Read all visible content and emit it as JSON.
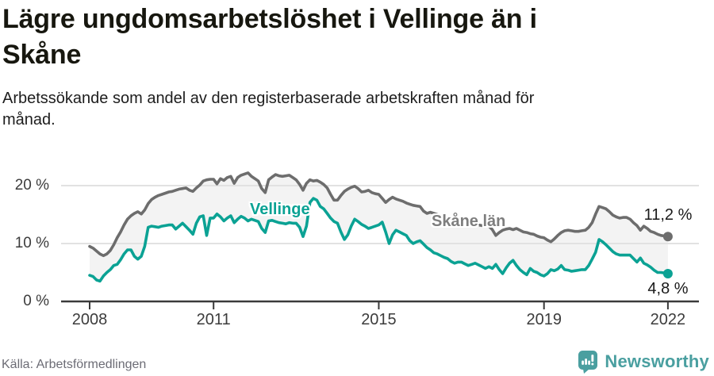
{
  "header": {
    "title_line1": "Lägre ungdomsarbetslöshet i Vellinge än i",
    "title_line2": "Skåne",
    "subtitle_line1": "Arbetssökande som andel av den registerbaserade arbetskraften månad för",
    "subtitle_line2": "månad."
  },
  "chart_data": {
    "type": "line",
    "title": "Lägre ungdomsarbetslöshet i Vellinge än i Skåne",
    "subtitle": "Arbetssökande som andel av den registerbaserade arbetskraften månad för månad.",
    "unit": "%",
    "x_start": "2008-01",
    "x_end": "2022-01",
    "x_interval": "monthly",
    "ylim": [
      0,
      23
    ],
    "grid": "horizontal",
    "legend_position": "inline-labels",
    "yticks": [
      {
        "value": 20,
        "label": "20 %"
      },
      {
        "value": 10,
        "label": "10 %"
      },
      {
        "value": 0,
        "label": "0 %"
      }
    ],
    "xticks": [
      {
        "value": 2008,
        "label": "2008"
      },
      {
        "value": 2011,
        "label": "2011"
      },
      {
        "value": 2015,
        "label": "2015"
      },
      {
        "value": 2019,
        "label": "2019"
      },
      {
        "value": 2022,
        "label": "2022"
      }
    ],
    "band_fill": "#f3f3f3",
    "series": [
      {
        "name": "Skåne län",
        "color": "#6d6d6d",
        "last_value_label": "11,2 %",
        "values": [
          9.5,
          9.2,
          8.7,
          8.2,
          7.9,
          8.2,
          8.8,
          9.8,
          11.0,
          12.0,
          13.2,
          14.2,
          14.8,
          15.2,
          15.5,
          15.1,
          15.8,
          16.9,
          17.6,
          18.0,
          18.3,
          18.5,
          18.7,
          18.9,
          19.0,
          19.2,
          19.4,
          19.5,
          19.6,
          19.2,
          19.0,
          19.6,
          20.1,
          20.8,
          21.0,
          21.1,
          21.1,
          20.3,
          21.2,
          20.9,
          21.4,
          21.6,
          20.4,
          21.4,
          21.8,
          22.0,
          22.2,
          21.6,
          21.2,
          20.8,
          19.5,
          18.8,
          21.0,
          21.5,
          21.9,
          21.7,
          21.6,
          21.7,
          21.8,
          21.4,
          21.0,
          20.2,
          19.2,
          20.4,
          21.0,
          20.8,
          20.9,
          20.6,
          20.2,
          19.6,
          18.5,
          17.5,
          17.5,
          18.3,
          19.0,
          19.4,
          19.7,
          19.9,
          19.5,
          18.9,
          19.0,
          19.2,
          18.8,
          18.6,
          18.5,
          17.8,
          17.1,
          17.6,
          18.0,
          17.7,
          17.5,
          17.3,
          17.0,
          16.8,
          16.6,
          16.5,
          16.4,
          15.6,
          15.2,
          15.4,
          15.2,
          15.0,
          14.8,
          14.7,
          14.5,
          14.3,
          14.1,
          14.0,
          13.9,
          13.7,
          13.5,
          13.6,
          13.4,
          13.2,
          13.1,
          13.0,
          13.0,
          12.4,
          11.4,
          11.9,
          12.3,
          12.5,
          12.6,
          12.4,
          12.6,
          12.3,
          12.0,
          11.9,
          11.7,
          11.6,
          11.3,
          11.1,
          11.0,
          10.6,
          10.3,
          10.8,
          11.4,
          11.9,
          12.2,
          12.3,
          12.2,
          12.1,
          12.1,
          12.2,
          12.3,
          12.8,
          13.6,
          15.1,
          16.4,
          16.2,
          16.0,
          15.5,
          14.9,
          14.6,
          14.4,
          14.5,
          14.5,
          14.2,
          13.6,
          13.1,
          12.3,
          13.0,
          12.6,
          12.1,
          11.9,
          11.6,
          11.4,
          11.3,
          11.2
        ]
      },
      {
        "name": "Vellinge",
        "color": "#0ba294",
        "last_value_label": "4,8 %",
        "values": [
          4.5,
          4.3,
          3.7,
          3.5,
          4.4,
          5.0,
          5.5,
          6.2,
          6.4,
          7.2,
          8.2,
          8.9,
          8.9,
          7.8,
          7.3,
          7.8,
          9.5,
          12.8,
          13.0,
          12.9,
          12.8,
          13.0,
          13.1,
          13.2,
          13.2,
          12.5,
          13.0,
          13.5,
          12.9,
          12.3,
          11.6,
          13.5,
          14.6,
          14.8,
          11.4,
          14.4,
          14.4,
          15.1,
          14.6,
          13.9,
          14.4,
          14.8,
          13.6,
          14.2,
          14.7,
          14.4,
          13.9,
          14.2,
          14.0,
          13.8,
          12.6,
          11.9,
          13.9,
          14.0,
          13.8,
          13.6,
          13.5,
          13.4,
          13.6,
          13.5,
          13.5,
          12.8,
          11.2,
          13.0,
          17.1,
          17.8,
          17.5,
          16.4,
          16.0,
          15.2,
          14.4,
          13.8,
          13.5,
          12.0,
          10.7,
          11.5,
          13.0,
          14.2,
          13.8,
          13.3,
          13.0,
          12.6,
          12.8,
          13.0,
          13.2,
          13.7,
          12.0,
          10.0,
          11.5,
          12.3,
          12.0,
          11.7,
          11.4,
          10.5,
          10.0,
          10.3,
          10.5,
          9.9,
          9.3,
          8.9,
          8.4,
          8.2,
          7.9,
          7.6,
          7.4,
          6.9,
          6.6,
          6.8,
          6.8,
          6.5,
          6.2,
          6.4,
          6.6,
          6.3,
          6.0,
          5.7,
          6.0,
          5.7,
          6.4,
          5.5,
          4.8,
          5.8,
          6.6,
          7.1,
          6.2,
          5.5,
          5.0,
          4.6,
          5.7,
          5.2,
          5.0,
          4.6,
          4.4,
          4.8,
          5.5,
          5.3,
          5.6,
          6.2,
          5.5,
          5.4,
          5.2,
          5.3,
          5.4,
          5.5,
          5.5,
          6.2,
          7.3,
          8.5,
          10.7,
          10.3,
          9.8,
          9.2,
          8.6,
          8.2,
          8.0,
          8.0,
          8.0,
          8.0,
          7.4,
          6.8,
          7.5,
          6.6,
          6.3,
          5.9,
          5.4,
          5.0,
          5.0,
          4.9,
          4.8
        ]
      }
    ]
  },
  "labels": {
    "vellinge": "Vellinge",
    "skane": "Skåne län",
    "skane_end": "11,2 %",
    "vellinge_end": "4,8 %"
  },
  "footer": {
    "source": "Källa: Arbetsförmedlingen",
    "brand": "Newsworthy"
  },
  "colors": {
    "vellinge": "#0ba294",
    "skane": "#6d6d6d",
    "band": "#f3f3f3",
    "gridline": "#e2e2e2",
    "axis": "#3a3a3a",
    "brand_teal": "#4a9fa0"
  }
}
